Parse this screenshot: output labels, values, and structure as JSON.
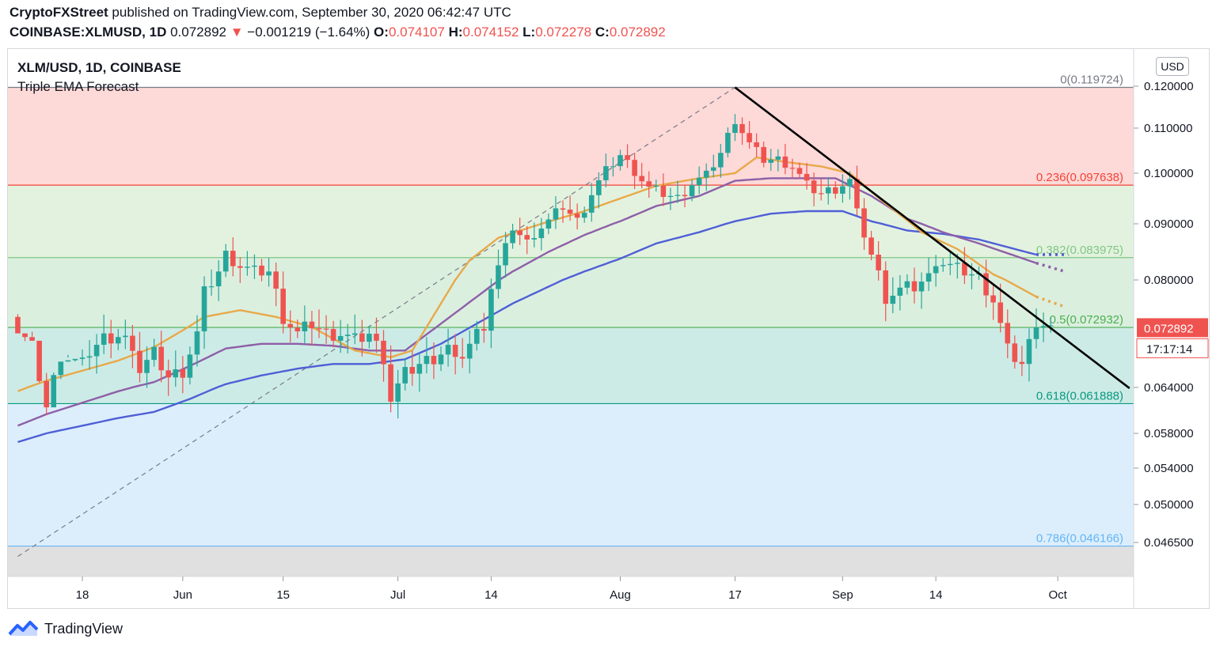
{
  "header": {
    "author": "CryptoFXStreet",
    "published_text": "published on TradingView.com, September 30, 2020 06:42:47 UTC",
    "symbol": "COINBASE:XLMUSD, 1D",
    "last": "0.072892",
    "down_arrow": "▼",
    "change": "−0.001219 (−1.64%)",
    "o_label": "O:",
    "o_value": "0.074107",
    "h_label": "H:",
    "h_value": "0.074152",
    "l_label": "L:",
    "l_value": "0.072278",
    "c_label": "C:",
    "c_value": "0.072892"
  },
  "legend": {
    "title": "XLM/USD, 1D, COINBASE",
    "indicator": "Triple EMA Forecast"
  },
  "footer": {
    "brand": "TradingView",
    "logo_icon": "tradingview-logo-icon"
  },
  "chart_data": {
    "type": "candlestick",
    "currency": "USD",
    "y_ticks": [
      0.12,
      0.11,
      0.1,
      0.09,
      0.08,
      0.064,
      0.058,
      0.054,
      0.05,
      0.0465
    ],
    "y_tick_labels": [
      "0.120000",
      "0.110000",
      "0.100000",
      "0.090000",
      "0.080000",
      "0.064000",
      "0.058000",
      "0.054000",
      "0.050000",
      "0.046500"
    ],
    "x_ticks": [
      {
        "label": "18",
        "day": 0
      },
      {
        "label": "Jun",
        "day": 14
      },
      {
        "label": "15",
        "day": 28
      },
      {
        "label": "Jul",
        "day": 44
      },
      {
        "label": "14",
        "day": 57
      },
      {
        "label": "Aug",
        "day": 75
      },
      {
        "label": "17",
        "day": 91
      },
      {
        "label": "Sep",
        "day": 106
      },
      {
        "label": "14",
        "day": 119
      },
      {
        "label": "Oct",
        "day": 136
      }
    ],
    "first_day_index": -9,
    "last_day_index": 135,
    "fib_levels": [
      {
        "ratio": "0",
        "value": 0.119724,
        "label": "0(0.119724)",
        "color": "#787b86"
      },
      {
        "ratio": "0.236",
        "value": 0.097638,
        "label": "0.236(0.097638)",
        "color": "#f44336"
      },
      {
        "ratio": "0.382",
        "value": 0.083975,
        "label": "0.382(0.083975)",
        "color": "#81c784"
      },
      {
        "ratio": "0.5",
        "value": 0.072932,
        "label": "0.5(0.072932)",
        "color": "#4caf50"
      },
      {
        "ratio": "0.618",
        "value": 0.061888,
        "label": "0.618(0.061888)",
        "color": "#089981"
      },
      {
        "ratio": "0.786",
        "value": 0.046166,
        "label": "0.786(0.046166)",
        "color": "#64b5f6"
      }
    ],
    "fib_zone_colors": [
      "#fdd9d8",
      "#e3f2df",
      "#dbefdf",
      "#cdebe6",
      "#dceefc",
      "#e0e0e0"
    ],
    "fib_trend_start": {
      "day": -9,
      "value": 0.0452
    },
    "fib_trend_end": {
      "day": 91,
      "value": 0.119724
    },
    "downtrend_line": {
      "start": {
        "day": 91,
        "value": 0.1197
      },
      "end": {
        "day": 146,
        "value": 0.0639
      }
    },
    "last_price": {
      "value": 0.072892,
      "label": "0.072892",
      "countdown": "17:17:14",
      "color": "#ef5350"
    },
    "ema_fast_keys": [
      [
        -9,
        0.0635
      ],
      [
        -5,
        0.065
      ],
      [
        0,
        0.0665
      ],
      [
        5,
        0.068
      ],
      [
        10,
        0.07
      ],
      [
        14,
        0.0725
      ],
      [
        17,
        0.0745
      ],
      [
        22,
        0.0755
      ],
      [
        27,
        0.0745
      ],
      [
        32,
        0.073
      ],
      [
        38,
        0.0695
      ],
      [
        43,
        0.0685
      ],
      [
        46,
        0.0695
      ],
      [
        50,
        0.0765
      ],
      [
        54,
        0.0835
      ],
      [
        58,
        0.0875
      ],
      [
        64,
        0.09
      ],
      [
        70,
        0.0925
      ],
      [
        75,
        0.095
      ],
      [
        80,
        0.0975
      ],
      [
        86,
        0.099
      ],
      [
        91,
        0.1
      ],
      [
        94,
        0.1035
      ],
      [
        98,
        0.1025
      ],
      [
        103,
        0.1015
      ],
      [
        107,
        0.1
      ],
      [
        112,
        0.094
      ],
      [
        117,
        0.0885
      ],
      [
        122,
        0.0855
      ],
      [
        127,
        0.081
      ],
      [
        133,
        0.0775
      ]
    ],
    "ema_mid_keys": [
      [
        -9,
        0.059
      ],
      [
        -5,
        0.0605
      ],
      [
        0,
        0.062
      ],
      [
        5,
        0.0635
      ],
      [
        10,
        0.0648
      ],
      [
        15,
        0.0672
      ],
      [
        20,
        0.0698
      ],
      [
        25,
        0.0705
      ],
      [
        30,
        0.0705
      ],
      [
        35,
        0.0702
      ],
      [
        40,
        0.0695
      ],
      [
        45,
        0.0695
      ],
      [
        50,
        0.0735
      ],
      [
        55,
        0.0775
      ],
      [
        60,
        0.0815
      ],
      [
        65,
        0.085
      ],
      [
        70,
        0.088
      ],
      [
        75,
        0.0905
      ],
      [
        80,
        0.0935
      ],
      [
        86,
        0.0955
      ],
      [
        91,
        0.0985
      ],
      [
        96,
        0.099
      ],
      [
        100,
        0.099
      ],
      [
        105,
        0.099
      ],
      [
        110,
        0.0955
      ],
      [
        115,
        0.091
      ],
      [
        120,
        0.0885
      ],
      [
        125,
        0.0865
      ],
      [
        133,
        0.083
      ]
    ],
    "ema_slow_keys": [
      [
        -9,
        0.057
      ],
      [
        -5,
        0.058
      ],
      [
        0,
        0.059
      ],
      [
        5,
        0.06
      ],
      [
        10,
        0.0608
      ],
      [
        15,
        0.0625
      ],
      [
        20,
        0.0645
      ],
      [
        25,
        0.0658
      ],
      [
        30,
        0.0668
      ],
      [
        35,
        0.0675
      ],
      [
        40,
        0.0675
      ],
      [
        45,
        0.0682
      ],
      [
        50,
        0.0705
      ],
      [
        55,
        0.0735
      ],
      [
        60,
        0.0765
      ],
      [
        65,
        0.079
      ],
      [
        70,
        0.0815
      ],
      [
        75,
        0.0838
      ],
      [
        80,
        0.0865
      ],
      [
        86,
        0.0885
      ],
      [
        91,
        0.0905
      ],
      [
        96,
        0.092
      ],
      [
        101,
        0.0925
      ],
      [
        106,
        0.0925
      ],
      [
        110,
        0.0905
      ],
      [
        115,
        0.0888
      ],
      [
        120,
        0.0882
      ],
      [
        125,
        0.0872
      ],
      [
        133,
        0.0845
      ]
    ],
    "ema_fast_forecast": [
      [
        133,
        0.0775
      ],
      [
        137,
        0.076
      ]
    ],
    "ema_mid_forecast": [
      [
        133,
        0.083
      ],
      [
        137,
        0.0815
      ]
    ],
    "ema_slow_forecast": [
      [
        133,
        0.0845
      ],
      [
        137,
        0.0845
      ]
    ],
    "ema_colors": [
      "#e8a94a",
      "#8e5fa8",
      "#4f5fd6"
    ],
    "close_keys": [
      [
        -9,
        0.0745
      ],
      [
        -7,
        0.072
      ],
      [
        -5,
        0.0635
      ],
      [
        -3,
        0.071
      ],
      [
        -1,
        0.07
      ],
      [
        1,
        0.069
      ],
      [
        3,
        0.071
      ],
      [
        5,
        0.0715
      ],
      [
        7,
        0.0705
      ],
      [
        8,
        0.0665
      ],
      [
        10,
        0.069
      ],
      [
        12,
        0.0655
      ],
      [
        14,
        0.0665
      ],
      [
        16,
        0.072
      ],
      [
        17,
        0.078
      ],
      [
        19,
        0.0815
      ],
      [
        20,
        0.0845
      ],
      [
        22,
        0.0825
      ],
      [
        24,
        0.0815
      ],
      [
        26,
        0.0815
      ],
      [
        28,
        0.0745
      ],
      [
        30,
        0.072
      ],
      [
        32,
        0.0735
      ],
      [
        34,
        0.072
      ],
      [
        36,
        0.072
      ],
      [
        38,
        0.071
      ],
      [
        40,
        0.072
      ],
      [
        42,
        0.0685
      ],
      [
        43,
        0.0625
      ],
      [
        45,
        0.066
      ],
      [
        47,
        0.0675
      ],
      [
        49,
        0.0685
      ],
      [
        51,
        0.07
      ],
      [
        52,
        0.0675
      ],
      [
        54,
        0.0705
      ],
      [
        56,
        0.0735
      ],
      [
        57,
        0.079
      ],
      [
        59,
        0.0855
      ],
      [
        60,
        0.0895
      ],
      [
        62,
        0.0865
      ],
      [
        63,
        0.0885
      ],
      [
        65,
        0.0905
      ],
      [
        67,
        0.0935
      ],
      [
        69,
        0.0905
      ],
      [
        71,
        0.096
      ],
      [
        73,
        0.1005
      ],
      [
        75,
        0.104
      ],
      [
        77,
        0.1005
      ],
      [
        79,
        0.097
      ],
      [
        81,
        0.096
      ],
      [
        83,
        0.095
      ],
      [
        85,
        0.098
      ],
      [
        87,
        0.0995
      ],
      [
        89,
        0.1045
      ],
      [
        91,
        0.112
      ],
      [
        93,
        0.1065
      ],
      [
        95,
        0.103
      ],
      [
        97,
        0.103
      ],
      [
        99,
        0.1015
      ],
      [
        101,
        0.0975
      ],
      [
        103,
        0.096
      ],
      [
        105,
        0.097
      ],
      [
        107,
        0.0985
      ],
      [
        108,
        0.092
      ],
      [
        110,
        0.0845
      ],
      [
        112,
        0.0775
      ],
      [
        114,
        0.0785
      ],
      [
        116,
        0.079
      ],
      [
        118,
        0.0805
      ],
      [
        119,
        0.0835
      ],
      [
        121,
        0.0825
      ],
      [
        123,
        0.0815
      ],
      [
        125,
        0.0805
      ],
      [
        127,
        0.077
      ],
      [
        129,
        0.0695
      ],
      [
        131,
        0.0675
      ],
      [
        132,
        0.0705
      ],
      [
        133,
        0.074
      ],
      [
        134,
        0.0735
      ],
      [
        135,
        0.0729
      ]
    ]
  }
}
